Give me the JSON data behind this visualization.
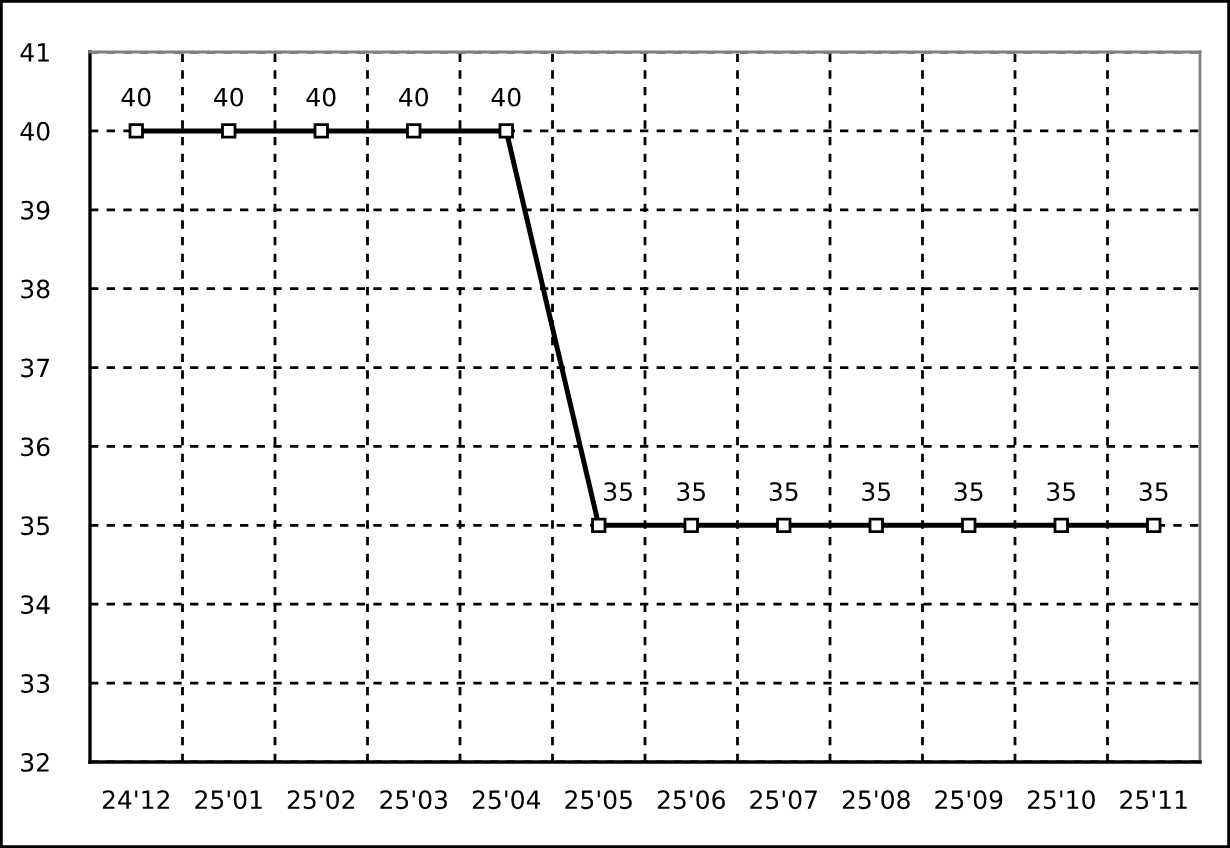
{
  "chart_data": {
    "type": "line",
    "categories": [
      "24'12",
      "25'01",
      "25'02",
      "25'03",
      "25'04",
      "25'05",
      "25'06",
      "25'07",
      "25'08",
      "25'09",
      "25'10",
      "25'11"
    ],
    "series": [
      {
        "color": "#000000",
        "values": [
          40,
          40,
          40,
          40,
          40,
          35,
          35,
          35,
          35,
          35,
          35,
          35
        ]
      }
    ],
    "ylim": [
      32,
      41
    ],
    "yticks": [
      32,
      33,
      34,
      35,
      36,
      37,
      38,
      39,
      40,
      41
    ],
    "grid": true,
    "marker": "square",
    "line_style": "solid",
    "data_labels": true
  }
}
